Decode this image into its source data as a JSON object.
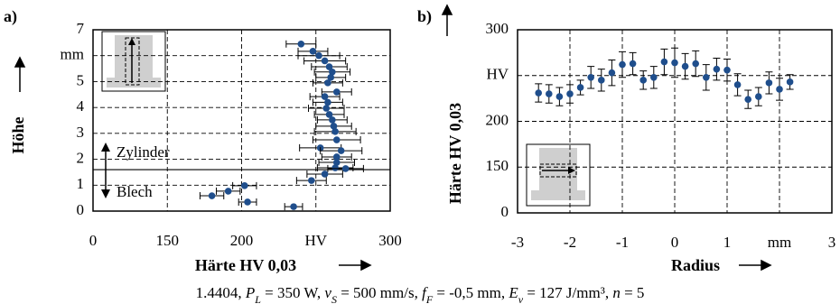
{
  "chart_data": [
    {
      "type": "scatter",
      "panel_label": "a)",
      "xlabel": "Härte HV 0,03",
      "ylabel": "Höhe",
      "xlim": [
        0,
        300
      ],
      "xticks": [
        0,
        150,
        200,
        {
          "value": 250,
          "label": "HV"
        },
        300
      ],
      "ylim": [
        0,
        7
      ],
      "yticks": [
        0,
        1,
        2,
        3,
        4,
        5,
        {
          "value": 6,
          "label": "mm"
        },
        7
      ],
      "grid": true,
      "color": "#1f4e8c",
      "boundary": 1.6,
      "annotations": [
        "Zylinder",
        "Blech"
      ],
      "x": [
        240,
        248,
        252,
        256,
        259,
        261,
        260,
        258,
        264,
        256,
        258,
        257,
        259,
        261,
        262,
        263,
        264,
        253,
        267,
        264,
        264,
        263,
        270,
        256,
        247,
        202,
        191,
        180,
        204,
        235
      ],
      "y": [
        6.45,
        6.17,
        6.0,
        5.8,
        5.57,
        5.37,
        5.16,
        4.95,
        4.6,
        4.42,
        4.2,
        3.97,
        3.73,
        3.52,
        3.28,
        3.07,
        2.75,
        2.44,
        2.33,
        2.09,
        1.88,
        1.67,
        1.64,
        1.43,
        1.18,
        0.98,
        0.77,
        0.59,
        0.35,
        0.17
      ],
      "xerr": [
        10,
        10,
        14,
        14,
        12,
        12,
        10,
        10,
        10,
        10,
        10,
        12,
        10,
        10,
        12,
        14,
        16,
        14,
        14,
        10,
        12,
        12,
        12,
        12,
        10,
        8,
        8,
        8,
        6,
        6
      ]
    },
    {
      "type": "scatter",
      "panel_label": "b)",
      "xlabel": "Radius",
      "ylabel": "Härte HV 0,03",
      "xlim": [
        -3,
        3
      ],
      "xticks": [
        -3,
        -2,
        -1,
        0,
        1,
        {
          "value": 2,
          "label": "mm"
        },
        3
      ],
      "ylim": [
        0,
        300
      ],
      "yticks": [
        0,
        150,
        200,
        {
          "value": 250,
          "label": "HV"
        },
        300
      ],
      "grid": true,
      "color": "#1f4e8c",
      "x": [
        -2.6,
        -2.4,
        -2.2,
        -2.0,
        -1.8,
        -1.6,
        -1.4,
        -1.2,
        -1.0,
        -0.8,
        -0.6,
        -0.4,
        -0.2,
        0,
        0.2,
        0.4,
        0.6,
        0.8,
        1.0,
        1.2,
        1.4,
        1.6,
        1.8,
        2.0,
        2.2
      ],
      "y": [
        231,
        230,
        227,
        230,
        237,
        248,
        245,
        253,
        262,
        263,
        245,
        248,
        265,
        264,
        260,
        263,
        248,
        257,
        256,
        240,
        224,
        227,
        242,
        235,
        243
      ],
      "yerr": [
        10,
        10,
        10,
        10,
        8,
        12,
        12,
        14,
        14,
        12,
        10,
        12,
        14,
        16,
        14,
        14,
        14,
        12,
        12,
        12,
        10,
        10,
        12,
        12,
        8
      ]
    }
  ],
  "caption": [
    "1.4404, ",
    "P",
    "L",
    " = 350 W, ",
    "v",
    "S",
    " = 500 mm/s, ",
    "f",
    "F",
    " = -0,5 mm, ",
    "E",
    "v",
    " = 127 J/mm³, ",
    "n",
    " = 5"
  ]
}
